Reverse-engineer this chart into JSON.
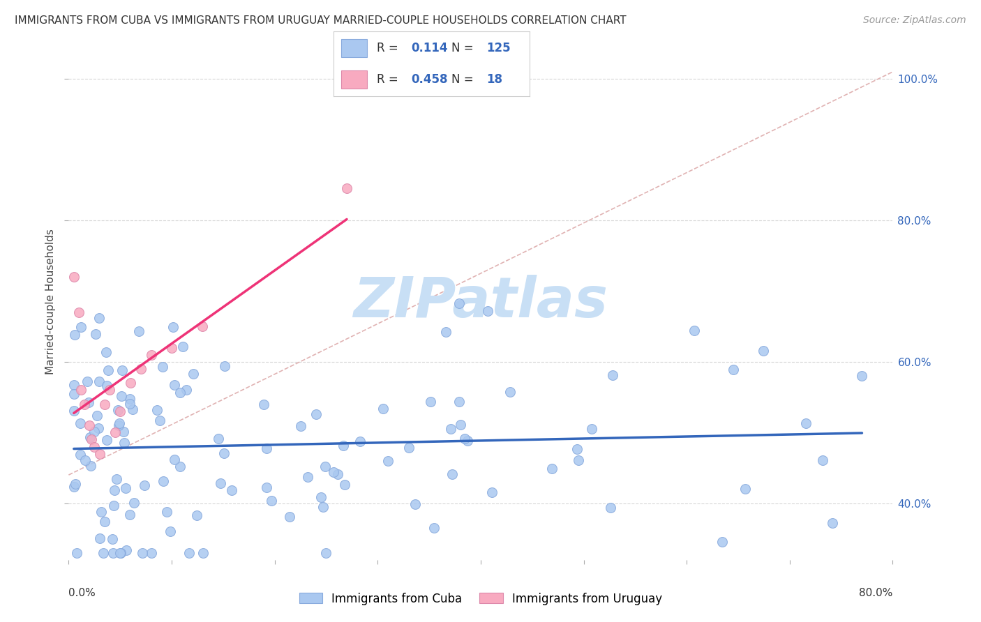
{
  "title": "IMMIGRANTS FROM CUBA VS IMMIGRANTS FROM URUGUAY MARRIED-COUPLE HOUSEHOLDS CORRELATION CHART",
  "source": "Source: ZipAtlas.com",
  "ylabel": "Married-couple Households",
  "bottom_legend_cuba": "Immigrants from Cuba",
  "bottom_legend_uruguay": "Immigrants from Uruguay",
  "xlim": [
    0.0,
    0.8
  ],
  "ylim": [
    0.32,
    1.05
  ],
  "cuba_color": "#aac8f0",
  "cuba_edge_color": "#88aadd",
  "uruguay_color": "#f8aac0",
  "uruguay_edge_color": "#dd88aa",
  "cuba_line_color": "#3366bb",
  "uruguay_line_color": "#ee3377",
  "diag_line_color": "#ddaaaa",
  "cuba_R": 0.114,
  "cuba_N": 125,
  "uruguay_R": 0.458,
  "uruguay_N": 18,
  "watermark_color": "#c8dff5",
  "background_color": "#ffffff",
  "grid_color": "#cccccc",
  "ytick_values": [
    0.4,
    0.6,
    0.8,
    1.0
  ],
  "ytick_labels": [
    "40.0%",
    "60.0%",
    "80.0%",
    "100.0%"
  ],
  "title_fontsize": 11,
  "source_fontsize": 10,
  "tick_label_fontsize": 11,
  "ylabel_fontsize": 11,
  "scatter_size": 100
}
